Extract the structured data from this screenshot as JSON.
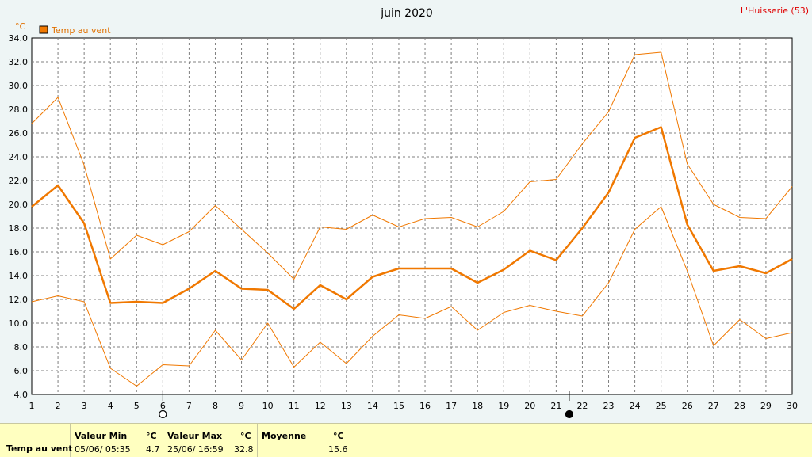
{
  "chart_data": {
    "type": "line",
    "title": "juin 2020",
    "station": "L'Huisserie (53)",
    "unit": "°C",
    "x": [
      1,
      2,
      3,
      4,
      5,
      6,
      7,
      8,
      9,
      10,
      11,
      12,
      13,
      14,
      15,
      16,
      17,
      18,
      19,
      20,
      21,
      22,
      23,
      24,
      25,
      26,
      27,
      28,
      29,
      30
    ],
    "xlim": [
      1,
      30
    ],
    "ylim": [
      4,
      34
    ],
    "y_ticks": [
      "4.0",
      "6.0",
      "8.0",
      "10.0",
      "12.0",
      "14.0",
      "16.0",
      "18.0",
      "20.0",
      "22.0",
      "24.0",
      "26.0",
      "28.0",
      "30.0",
      "32.0",
      "34.0"
    ],
    "grid": true,
    "legend_position": "top-left",
    "legend_label": "Temp au vent",
    "series": [
      {
        "role": "mean",
        "color": "#f07800",
        "values": [
          19.8,
          21.6,
          18.4,
          11.7,
          11.8,
          11.7,
          12.9,
          14.4,
          12.9,
          12.8,
          11.2,
          13.2,
          12.0,
          13.9,
          14.6,
          14.6,
          14.6,
          13.4,
          14.5,
          16.1,
          15.3,
          18.0,
          21.0,
          25.6,
          26.5,
          18.3,
          14.4,
          14.8,
          14.2,
          15.4
        ]
      },
      {
        "role": "max",
        "color": "#f07800",
        "values": [
          26.8,
          29.0,
          23.3,
          15.4,
          17.4,
          16.6,
          17.7,
          19.9,
          17.9,
          15.9,
          13.7,
          18.1,
          17.9,
          19.1,
          18.1,
          18.8,
          18.9,
          18.1,
          19.4,
          21.9,
          22.1,
          25.1,
          27.8,
          32.6,
          32.8,
          23.4,
          20.0,
          18.9,
          18.8,
          21.5
        ]
      },
      {
        "role": "min",
        "color": "#f07800",
        "values": [
          11.8,
          12.3,
          11.8,
          6.2,
          4.7,
          6.5,
          6.4,
          9.4,
          6.9,
          10.0,
          6.3,
          8.4,
          6.6,
          8.9,
          10.7,
          10.4,
          11.4,
          9.4,
          10.9,
          11.5,
          11.0,
          10.6,
          13.4,
          17.9,
          19.8,
          14.4,
          8.1,
          10.3,
          8.7,
          9.2
        ]
      }
    ],
    "moon_phases": [
      {
        "day": 6,
        "phase": "full-moon"
      },
      {
        "day": 21.5,
        "phase": "new-moon"
      }
    ]
  },
  "footer": {
    "row_label": "Temp au vent",
    "min_header": "Valeur Min",
    "min_unit": "°C",
    "min_date": "05/06/  05:35",
    "min_value": "4.7",
    "max_header": "Valeur Max",
    "max_unit": "°C",
    "max_date": "25/06/  16:59",
    "max_value": "32.8",
    "mean_header": "Moyenne",
    "mean_unit": "°C",
    "mean_value": "15.6"
  }
}
